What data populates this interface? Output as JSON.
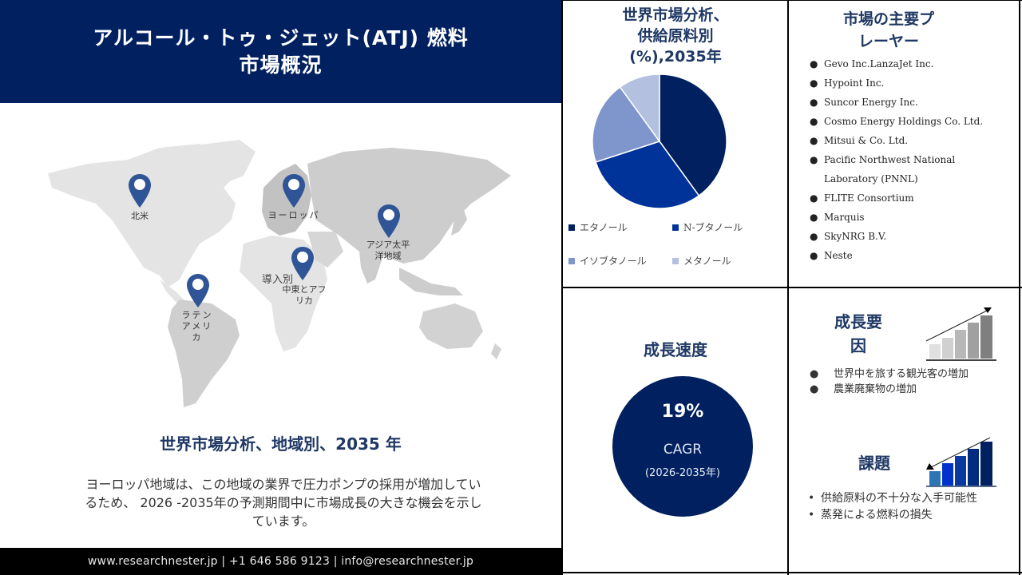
{
  "header": {
    "title_line1": "アルコール・トゥ・ジェット(ATJ) 燃料",
    "title_line2": "市場概況"
  },
  "map": {
    "overlay_label": "導入別",
    "pins": [
      {
        "id": "north-america",
        "label": "北米"
      },
      {
        "id": "europe",
        "label": "ヨーロッパ"
      },
      {
        "id": "asia-pacific",
        "label": "アジア太平\n洋地域"
      },
      {
        "id": "middle-east-africa",
        "label": "中東とアフ\nリカ"
      },
      {
        "id": "latin-america",
        "label": "ラテン\nアメリ\nカ"
      }
    ],
    "colors": {
      "pin": "#2f5597",
      "land_light": "#e4e4e4",
      "land_dark": "#c8c8c8"
    }
  },
  "region_section": {
    "title": "世界市場分析、地域別、2035 年",
    "description": "ヨーロッパ地域は、この地域の業界で圧力ポンプの採用が増加しているため、 2026 -2035年の予測期間中に市場成長の大きな機会を示しています。"
  },
  "footer": {
    "contact": "www.researchnester.jp | +1 646 586 9123 | info@researchnester.jp"
  },
  "feedstock_section": {
    "title_line1": "世界市場分析、",
    "title_line2": "供給原料別",
    "title_line3": "(%),2035年"
  },
  "chart_data": {
    "type": "pie",
    "title": "世界市場分析、供給原料別 (%),2035年",
    "categories": [
      "エタノール",
      "N-ブタノール",
      "イソブタノール",
      "メタノール"
    ],
    "values": [
      40,
      30,
      20,
      10
    ],
    "colors": [
      "#002060",
      "#003399",
      "#7f96cc",
      "#b4c0e0"
    ],
    "legend_position": "bottom"
  },
  "growth_rate": {
    "title": "成長速度",
    "value": "19%",
    "label": "CAGR",
    "period": "(2026-2035年)"
  },
  "key_players": {
    "title_line1": "市場の主要プ",
    "title_line2": "レーヤー",
    "items": [
      "Gevo Inc.LanzaJet Inc.",
      "Hypoint Inc.",
      "Suncor Energy Inc.",
      "Cosmo Energy Holdings Co. Ltd.",
      "Mitsui & Co. Ltd.",
      "Pacific Northwest National Laboratory (PNNL)",
      "FLITE Consortium",
      "Marquis",
      "SkyNRG B.V.",
      "Neste"
    ]
  },
  "growth_factors": {
    "title_line1": "成長要",
    "title_line2": "因",
    "items": [
      "世界中を旅する観光客の増加",
      "農業廃棄物の増加"
    ]
  },
  "challenges": {
    "title": "課題",
    "items": [
      "供給原料の不十分な入手可能性",
      "蒸発による燃料の損失"
    ]
  },
  "icons": {
    "bullet": "●",
    "small_bullet": "•"
  }
}
